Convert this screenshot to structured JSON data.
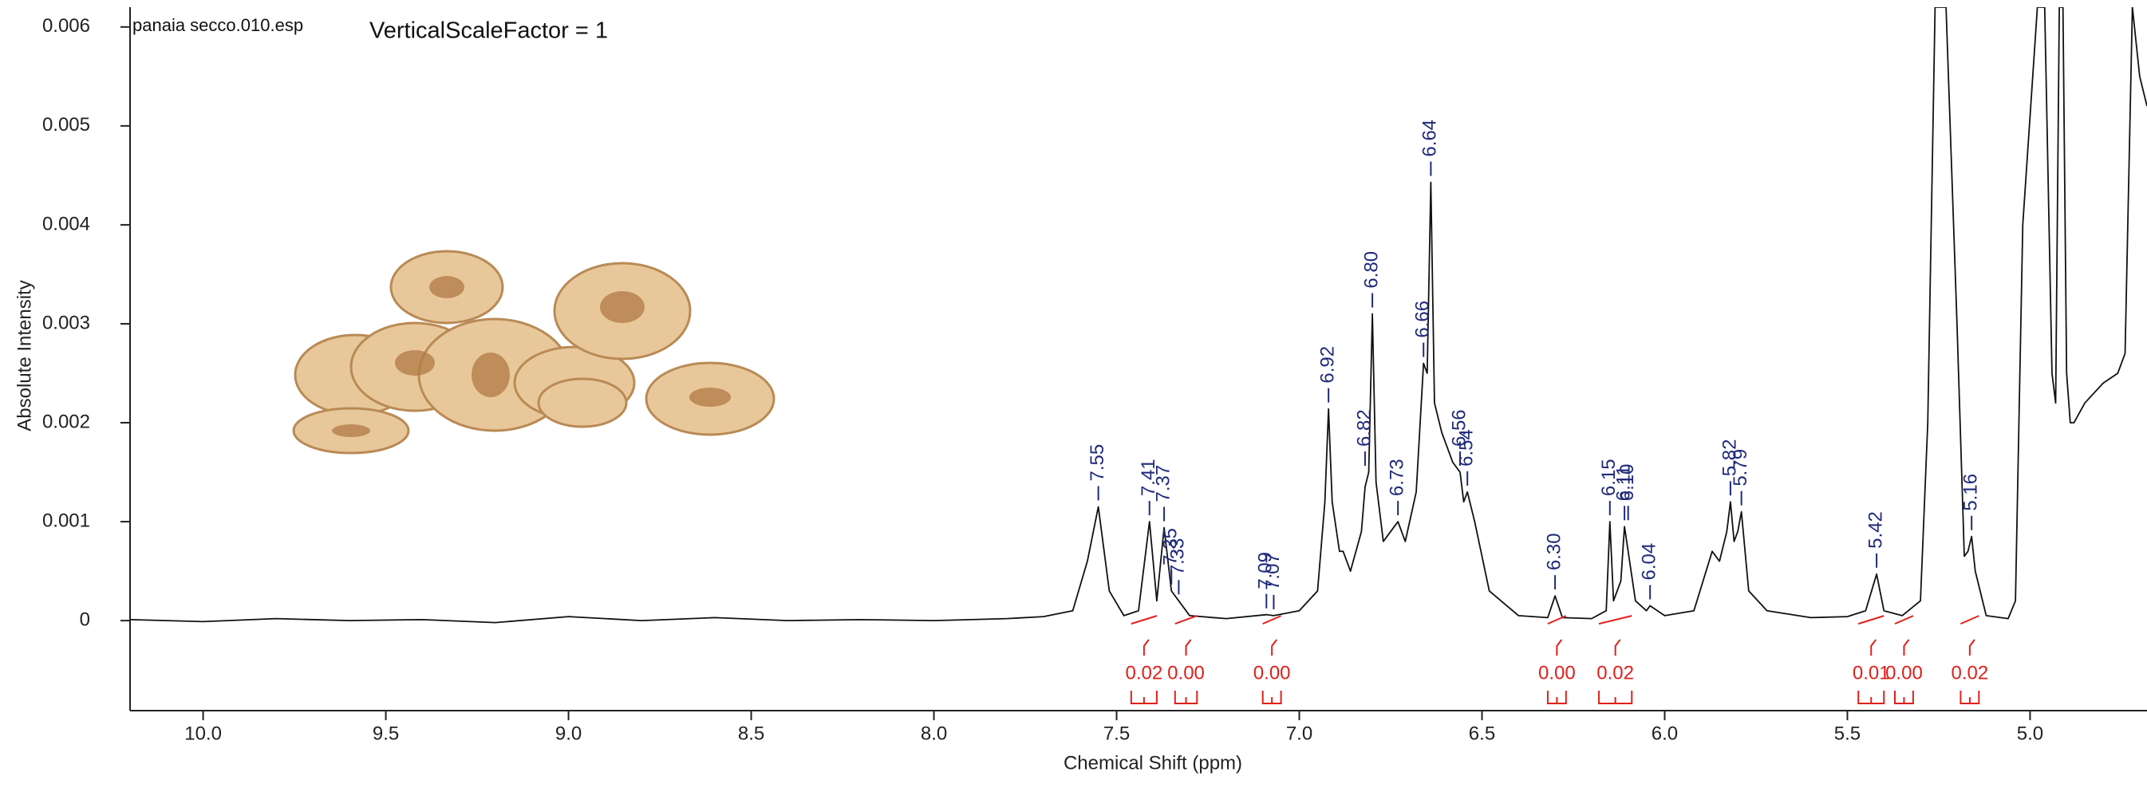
{
  "chart_data": {
    "type": "line",
    "file_label": "panaia secco.010.esp",
    "scale_note": "VerticalScaleFactor = 1",
    "x_label": "Chemical Shift (ppm)",
    "y_label": "Absolute Intensity",
    "xlim": [
      10.2,
      4.68
    ],
    "ylim": [
      -0.00091,
      0.0062
    ],
    "xticks": [
      {
        "value": 10,
        "label": "10.0"
      },
      9.5,
      {
        "value": 9,
        "label": "9.0"
      },
      8.5,
      {
        "value": 8,
        "label": "8.0"
      },
      7.5,
      {
        "value": 7,
        "label": "7.0"
      },
      6.5,
      {
        "value": 6,
        "label": "6.0"
      },
      5.5,
      {
        "value": 5,
        "label": "5.0"
      }
    ],
    "yticks": [
      0,
      0.001,
      0.002,
      0.003,
      0.004,
      0.005,
      0.006
    ],
    "x": [
      10.2,
      10.0,
      9.8,
      9.6,
      9.4,
      9.2,
      9.0,
      8.8,
      8.6,
      8.4,
      8.2,
      8.0,
      7.8,
      7.7,
      7.62,
      7.58,
      7.55,
      7.52,
      7.48,
      7.44,
      7.41,
      7.39,
      7.37,
      7.35,
      7.33,
      7.3,
      7.2,
      7.09,
      7.07,
      7.0,
      6.95,
      6.93,
      6.92,
      6.91,
      6.89,
      6.88,
      6.86,
      6.83,
      6.82,
      6.81,
      6.8,
      6.79,
      6.77,
      6.75,
      6.73,
      6.71,
      6.68,
      6.66,
      6.65,
      6.64,
      6.63,
      6.61,
      6.58,
      6.56,
      6.55,
      6.54,
      6.52,
      6.48,
      6.4,
      6.32,
      6.3,
      6.28,
      6.2,
      6.16,
      6.15,
      6.14,
      6.12,
      6.11,
      6.1,
      6.08,
      6.05,
      6.04,
      6.0,
      5.92,
      5.87,
      5.85,
      5.83,
      5.82,
      5.81,
      5.8,
      5.79,
      5.77,
      5.72,
      5.6,
      5.5,
      5.45,
      5.42,
      5.4,
      5.35,
      5.3,
      5.28,
      5.26,
      5.23,
      5.2,
      5.18,
      5.17,
      5.16,
      5.15,
      5.12,
      5.06,
      5.04,
      5.02,
      4.98,
      4.96,
      4.94,
      4.93,
      4.92,
      4.91,
      4.9,
      4.89,
      4.88,
      4.85,
      4.8,
      4.76,
      4.74,
      4.72,
      4.7,
      4.68
    ],
    "series": [
      {
        "color": "#111111",
        "values": [
          1e-05,
          -1e-05,
          2e-05,
          0,
          1e-05,
          -2e-05,
          4e-05,
          0,
          3e-05,
          0,
          1e-05,
          0,
          2e-05,
          4e-05,
          0.0001,
          0.0006,
          0.00115,
          0.0003,
          5e-05,
          0.0001,
          0.001,
          0.0002,
          0.00094,
          0.0003,
          0.0002,
          5e-05,
          2e-05,
          6e-05,
          5e-05,
          0.0001,
          0.0003,
          0.0012,
          0.00214,
          0.0012,
          0.0007,
          0.0007,
          0.0005,
          0.0009,
          0.00135,
          0.0015,
          0.0031,
          0.0014,
          0.0008,
          0.0009,
          0.001,
          0.0008,
          0.0013,
          0.0026,
          0.0025,
          0.00443,
          0.0022,
          0.0019,
          0.0016,
          0.0015,
          0.0012,
          0.0013,
          0.001,
          0.0003,
          5e-05,
          3e-05,
          0.00025,
          3e-05,
          2e-05,
          0.0001,
          0.001,
          0.0002,
          0.0004,
          0.00095,
          0.0007,
          0.0002,
          0.0001,
          0.00015,
          5e-05,
          0.0001,
          0.0007,
          0.0006,
          0.0009,
          0.0012,
          0.0008,
          0.0009,
          0.0011,
          0.0003,
          0.0001,
          3e-05,
          4e-05,
          0.0001,
          0.00047,
          0.0001,
          5e-05,
          0.0002,
          0.002,
          0.0062,
          0.0062,
          0.003,
          0.00065,
          0.0007,
          0.00085,
          0.0005,
          5e-05,
          2e-05,
          0.0002,
          0.004,
          0.0062,
          0.0062,
          0.0025,
          0.0022,
          0.0062,
          0.0062,
          0.0025,
          0.002,
          0.002,
          0.0022,
          0.0024,
          0.0025,
          0.0027,
          0.0062,
          0.0055,
          0.0052
        ]
      }
    ],
    "peak_color": "#1f2a7a",
    "peak_labels": [
      7.55,
      7.41,
      7.37,
      7.35,
      7.33,
      7.09,
      7.07,
      6.92,
      6.82,
      {
        "value": 6.8,
        "label": "6.80"
      },
      6.73,
      6.66,
      6.64,
      6.56,
      6.54,
      {
        "value": 6.3,
        "label": "6.30"
      },
      6.15,
      6.11,
      {
        "value": 6.1,
        "label": "6.10"
      },
      6.04,
      5.82,
      5.79,
      5.42,
      5.16
    ],
    "integral_color": "#e0201b",
    "integrals": [
      {
        "range": [
          7.46,
          7.39
        ],
        "value": 0.02,
        "label": "0.02"
      },
      {
        "range": [
          7.34,
          7.28
        ],
        "value": 0,
        "label": "0.00"
      },
      {
        "range": [
          7.1,
          7.05
        ],
        "value": 0,
        "label": "0.00"
      },
      {
        "range": [
          6.32,
          6.27
        ],
        "value": 0,
        "label": "0.00"
      },
      {
        "range": [
          6.18,
          6.09
        ],
        "value": 0.02,
        "label": "0.02"
      },
      {
        "range": [
          5.47,
          5.4
        ],
        "value": 0.01,
        "label": "0.01"
      },
      {
        "range": [
          5.37,
          5.32
        ],
        "value": 0,
        "label": "0.00"
      },
      {
        "range": [
          5.19,
          5.14
        ],
        "value": 0.02,
        "label": "0.02"
      }
    ]
  }
}
